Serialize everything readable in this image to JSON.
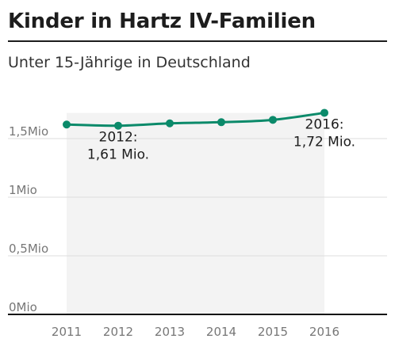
{
  "title": "Kinder in Hartz IV-Familien",
  "subtitle": "Unter 15-Jährige in Deutschland",
  "colors": {
    "line": "#0b8a6a",
    "highlight_band": "#f3f3f3",
    "grid": "#dcdcdc",
    "axis": "#111111",
    "tick_text": "#777777"
  },
  "chart_data": {
    "type": "line",
    "title": "Kinder in Hartz IV-Familien",
    "subtitle": "Unter 15-Jährige in Deutschland",
    "x": [
      "2011",
      "2012",
      "2013",
      "2014",
      "2015",
      "2016"
    ],
    "series": [
      {
        "values": [
          1.62,
          1.61,
          1.63,
          1.64,
          1.66,
          1.72
        ]
      }
    ],
    "ylim": [
      0,
      1.8
    ],
    "yticks": [
      0,
      0.5,
      1,
      1.5
    ],
    "ytick_labels": [
      "0Mio",
      "0,5Mio",
      "1Mio",
      "1,5Mio"
    ],
    "grid": true,
    "annotations": [
      {
        "x": "2012",
        "lines": [
          "2012:",
          "1,61 Mio."
        ]
      },
      {
        "x": "2016",
        "lines": [
          "2016:",
          "1,72 Mio."
        ]
      }
    ],
    "xlabel": "",
    "ylabel": ""
  }
}
